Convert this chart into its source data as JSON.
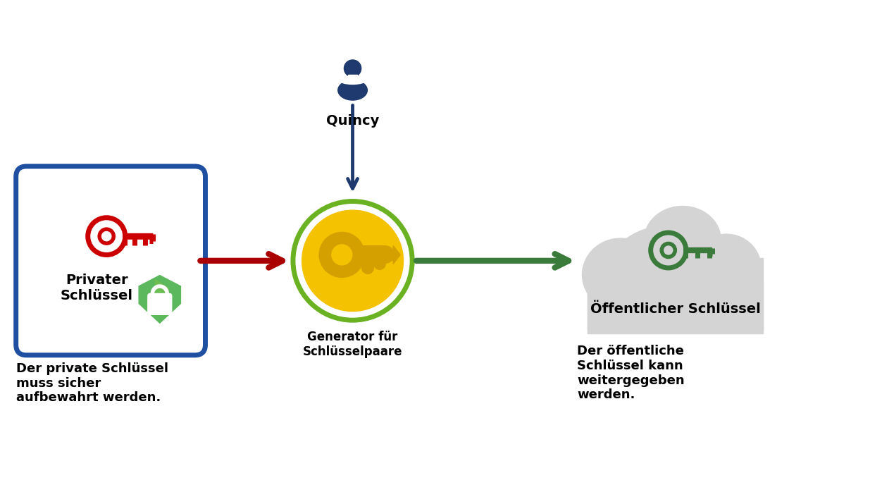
{
  "bg_color": "#ffffff",
  "person_color": "#1e3a6e",
  "person_label": "Quincy",
  "generator_label": "Generator für\nSchlüsselpaare",
  "generator_ring_color": "#6ab221",
  "generator_key_color": "#f5c200",
  "generator_key_dark": "#d4a000",
  "private_box_color": "#1e4fa0",
  "private_key_color": "#cc0000",
  "private_shield_color": "#5cb85c",
  "private_label": "Privater\nSchlüssel",
  "private_desc": "Der private Schlüssel\nmuss sicher\naufbewahrt werden.",
  "cloud_color": "#d4d4d4",
  "public_key_color": "#3a7a3a",
  "public_label": "Öffentlicher Schlüssel",
  "public_desc": "Der öffentliche\nSchlüssel kann\nweitergegeben\nwerden.",
  "arrow_down_color": "#1e3a6e",
  "arrow_left_color": "#aa0000",
  "arrow_right_color": "#3a7a3a"
}
